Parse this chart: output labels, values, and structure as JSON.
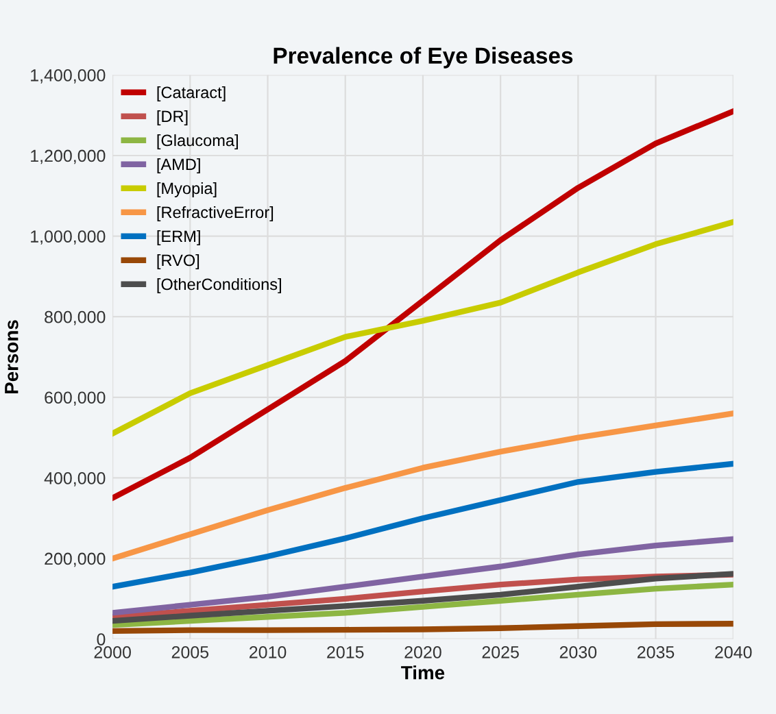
{
  "chart_data": {
    "type": "line",
    "title": "Prevalence of Eye Diseases",
    "xlabel": "Time",
    "ylabel": "Persons",
    "x": [
      2000,
      2005,
      2010,
      2015,
      2020,
      2025,
      2030,
      2035,
      2040
    ],
    "series": [
      {
        "name": "[Cataract]",
        "color": "#c00000",
        "values": [
          350000,
          450000,
          570000,
          690000,
          840000,
          990000,
          1120000,
          1230000,
          1310000
        ]
      },
      {
        "name": "[DR]",
        "color": "#c0504d",
        "values": [
          55000,
          70000,
          85000,
          100000,
          118000,
          135000,
          148000,
          155000,
          160000
        ]
      },
      {
        "name": "[Glaucoma]",
        "color": "#8db643",
        "values": [
          35000,
          45000,
          55000,
          65000,
          80000,
          95000,
          110000,
          125000,
          135000
        ]
      },
      {
        "name": "[AMD]",
        "color": "#8064a2",
        "values": [
          65000,
          85000,
          105000,
          130000,
          155000,
          180000,
          210000,
          232000,
          248000
        ]
      },
      {
        "name": "[Myopia]",
        "color": "#c8cc00",
        "values": [
          510000,
          610000,
          680000,
          750000,
          790000,
          835000,
          910000,
          980000,
          1035000
        ]
      },
      {
        "name": "[RefractiveError]",
        "color": "#f79646",
        "values": [
          200000,
          260000,
          320000,
          375000,
          425000,
          465000,
          500000,
          530000,
          560000
        ]
      },
      {
        "name": "[ERM]",
        "color": "#0070c0",
        "values": [
          130000,
          165000,
          205000,
          250000,
          300000,
          345000,
          390000,
          415000,
          435000
        ]
      },
      {
        "name": "[RVO]",
        "color": "#984807",
        "values": [
          20000,
          22000,
          22000,
          23000,
          24000,
          27000,
          32000,
          37000,
          38000
        ]
      },
      {
        "name": "[OtherConditions]",
        "color": "#4d4d4d",
        "values": [
          45000,
          58000,
          70000,
          82000,
          95000,
          110000,
          130000,
          150000,
          162000
        ]
      }
    ],
    "xlim": [
      2000,
      2040
    ],
    "xticks": [
      2000,
      2005,
      2010,
      2015,
      2020,
      2025,
      2030,
      2035,
      2040
    ],
    "ylim": [
      0,
      1400000
    ],
    "yticks": [
      {
        "value": 0,
        "label": "0"
      },
      {
        "value": 200000,
        "label": "200,000"
      },
      {
        "value": 400000,
        "label": "400,000"
      },
      {
        "value": 600000,
        "label": "600,000"
      },
      {
        "value": 800000,
        "label": "800,000"
      },
      {
        "value": 1000000,
        "label": "1,000,000"
      },
      {
        "value": 1200000,
        "label": "1,200,000"
      },
      {
        "value": 1400000,
        "label": "1,400,000"
      }
    ],
    "grid": true,
    "legend": "top left",
    "marker": "none",
    "line_style": "solid"
  }
}
